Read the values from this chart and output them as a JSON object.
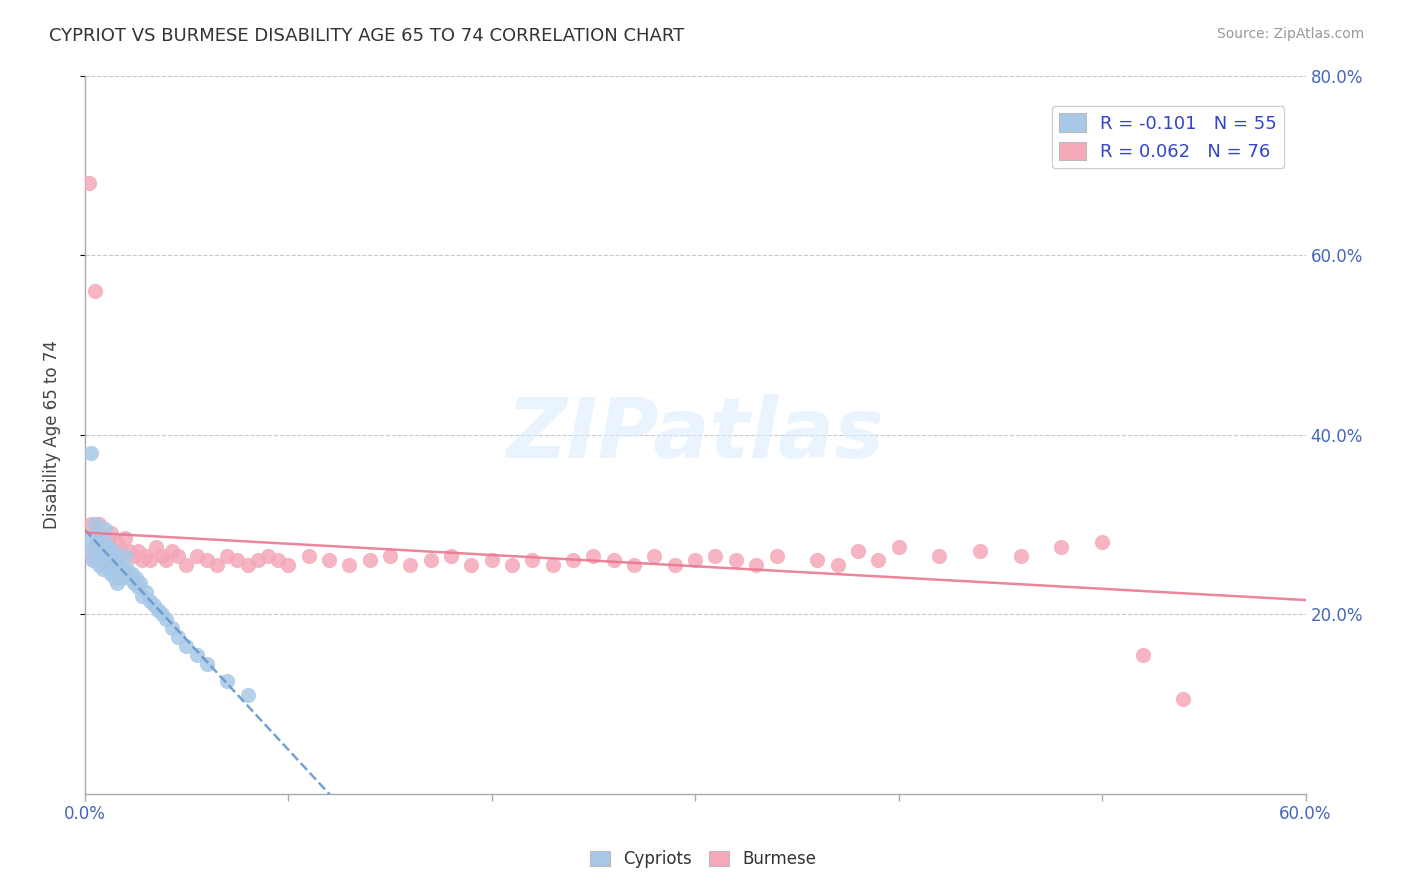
{
  "title": "CYPRIOT VS BURMESE DISABILITY AGE 65 TO 74 CORRELATION CHART",
  "source_text": "Source: ZipAtlas.com",
  "ylabel": "Disability Age 65 to 74",
  "xlim": [
    0.0,
    0.6
  ],
  "ylim": [
    0.0,
    0.8
  ],
  "ytick_vals": [
    0.2,
    0.4,
    0.6,
    0.8
  ],
  "ytick_labels": [
    "20.0%",
    "40.0%",
    "60.0%",
    "80.0%"
  ],
  "xtick_vals": [
    0.0,
    0.1,
    0.2,
    0.3,
    0.4,
    0.5,
    0.6
  ],
  "xtick_end_labels": [
    "0.0%",
    "60.0%"
  ],
  "grid_color": "#c8c8c8",
  "background_color": "#ffffff",
  "cypriot_color": "#a8c8e8",
  "burmese_color": "#f4a8b8",
  "cypriot_line_color": "#6699cc",
  "burmese_line_color": "#e87890",
  "legend_cypriot_label": "R = -0.101   N = 55",
  "legend_burmese_label": "R = 0.062   N = 76",
  "watermark": "ZIPatlas",
  "cypriot_scatter_x": [
    0.002,
    0.003,
    0.004,
    0.005,
    0.005,
    0.006,
    0.006,
    0.007,
    0.007,
    0.008,
    0.008,
    0.009,
    0.009,
    0.01,
    0.01,
    0.01,
    0.011,
    0.011,
    0.012,
    0.012,
    0.013,
    0.013,
    0.014,
    0.014,
    0.015,
    0.015,
    0.016,
    0.016,
    0.017,
    0.018,
    0.019,
    0.02,
    0.02,
    0.021,
    0.022,
    0.023,
    0.024,
    0.025,
    0.026,
    0.027,
    0.028,
    0.03,
    0.032,
    0.034,
    0.036,
    0.038,
    0.04,
    0.043,
    0.046,
    0.05,
    0.055,
    0.06,
    0.07,
    0.08,
    0.003
  ],
  "cypriot_scatter_y": [
    0.285,
    0.27,
    0.26,
    0.3,
    0.275,
    0.285,
    0.265,
    0.28,
    0.255,
    0.275,
    0.26,
    0.27,
    0.25,
    0.295,
    0.28,
    0.265,
    0.275,
    0.255,
    0.27,
    0.25,
    0.265,
    0.245,
    0.27,
    0.25,
    0.265,
    0.24,
    0.255,
    0.235,
    0.255,
    0.24,
    0.25,
    0.265,
    0.245,
    0.25,
    0.24,
    0.245,
    0.235,
    0.24,
    0.23,
    0.235,
    0.22,
    0.225,
    0.215,
    0.21,
    0.205,
    0.2,
    0.195,
    0.185,
    0.175,
    0.165,
    0.155,
    0.145,
    0.125,
    0.11,
    0.38
  ],
  "burmese_scatter_x": [
    0.001,
    0.002,
    0.003,
    0.004,
    0.005,
    0.006,
    0.007,
    0.008,
    0.009,
    0.01,
    0.012,
    0.013,
    0.014,
    0.015,
    0.016,
    0.017,
    0.018,
    0.02,
    0.022,
    0.024,
    0.026,
    0.028,
    0.03,
    0.032,
    0.035,
    0.038,
    0.04,
    0.043,
    0.046,
    0.05,
    0.055,
    0.06,
    0.065,
    0.07,
    0.075,
    0.08,
    0.085,
    0.09,
    0.095,
    0.1,
    0.11,
    0.12,
    0.13,
    0.14,
    0.15,
    0.16,
    0.17,
    0.18,
    0.19,
    0.2,
    0.21,
    0.22,
    0.23,
    0.24,
    0.25,
    0.26,
    0.27,
    0.28,
    0.29,
    0.3,
    0.31,
    0.32,
    0.33,
    0.34,
    0.36,
    0.37,
    0.38,
    0.39,
    0.4,
    0.42,
    0.44,
    0.46,
    0.48,
    0.5,
    0.52,
    0.54
  ],
  "burmese_scatter_y": [
    0.27,
    0.68,
    0.3,
    0.26,
    0.56,
    0.28,
    0.3,
    0.27,
    0.28,
    0.255,
    0.28,
    0.29,
    0.27,
    0.26,
    0.28,
    0.265,
    0.27,
    0.285,
    0.27,
    0.265,
    0.27,
    0.26,
    0.265,
    0.26,
    0.275,
    0.265,
    0.26,
    0.27,
    0.265,
    0.255,
    0.265,
    0.26,
    0.255,
    0.265,
    0.26,
    0.255,
    0.26,
    0.265,
    0.26,
    0.255,
    0.265,
    0.26,
    0.255,
    0.26,
    0.265,
    0.255,
    0.26,
    0.265,
    0.255,
    0.26,
    0.255,
    0.26,
    0.255,
    0.26,
    0.265,
    0.26,
    0.255,
    0.265,
    0.255,
    0.26,
    0.265,
    0.26,
    0.255,
    0.265,
    0.26,
    0.255,
    0.27,
    0.26,
    0.275,
    0.265,
    0.27,
    0.265,
    0.275,
    0.28,
    0.155,
    0.105
  ]
}
